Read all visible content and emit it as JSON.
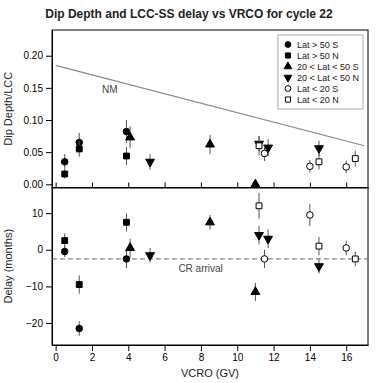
{
  "chart_data": [
    {
      "type": "scatter",
      "title": "Dip Depth and LCC-SS delay vs VRCO for cycle 22",
      "y_label": "Dip Depth/LCC",
      "xlim": [
        -0.2,
        17.2
      ],
      "xticks": [
        0,
        2,
        4,
        6,
        8,
        10,
        12,
        14,
        16
      ],
      "ylim": [
        -0.005,
        0.24
      ],
      "yticks": [
        {
          "value": 0.0,
          "label": "0.00"
        },
        0.05,
        {
          "value": 0.1,
          "label": "0.10"
        },
        0.15,
        {
          "value": 0.2,
          "label": "0.20"
        }
      ],
      "tick_labels": "y",
      "grid": false,
      "legend": "upper right",
      "series": [
        {
          "name": "Lat > 50 S",
          "marker": "circle",
          "color": "black",
          "x": [
            0.5,
            1.3,
            3.9
          ],
          "values": [
            0.035,
            0.065,
            0.082
          ],
          "errors": [
            0.012,
            0.015,
            0.018
          ]
        },
        {
          "name": "Lat > 50 N",
          "marker": "square",
          "color": "black",
          "x": [
            0.5,
            1.3,
            3.9
          ],
          "values": [
            0.016,
            0.055,
            0.044
          ],
          "errors": [
            0.007,
            0.012,
            0.014
          ]
        },
        {
          "name": "20 < Lat < 50 S",
          "marker": "triangle-up",
          "color": "black",
          "x": [
            4.1,
            8.5,
            11.0
          ],
          "values": [
            0.073,
            0.062,
            0.0
          ],
          "errors": [
            0.017,
            0.015,
            0.0
          ]
        },
        {
          "name": "20 < Lat < 50 N",
          "marker": "triangle-down",
          "color": "black",
          "x": [
            5.2,
            11.2,
            11.7,
            14.5
          ],
          "values": [
            0.035,
            0.063,
            0.057,
            0.056
          ],
          "errors": [
            0.012,
            0.012,
            0.013,
            0.012
          ]
        },
        {
          "name": "Lat < 20 S",
          "marker": "circle-open",
          "color": "black",
          "x": [
            11.5,
            14.0,
            16.0
          ],
          "values": [
            0.048,
            0.028,
            0.027
          ],
          "errors": [
            0.012,
            0.01,
            0.01
          ]
        },
        {
          "name": "Lat < 20 N",
          "marker": "square-open",
          "color": "black",
          "x": [
            11.2,
            14.5,
            16.5
          ],
          "values": [
            0.06,
            0.035,
            0.04
          ],
          "errors": [
            0.015,
            0.012,
            0.012
          ]
        }
      ],
      "lines": [
        {
          "x": [
            0,
            17
          ],
          "y": [
            0.185,
            0.06
          ],
          "label": "NM"
        }
      ]
    },
    {
      "type": "scatter",
      "x_label": "VCRO (GV)",
      "y_label": "Delay (months)",
      "xlim": [
        -0.2,
        17.2
      ],
      "xticks": [
        0,
        2,
        4,
        6,
        8,
        10,
        12,
        14,
        16
      ],
      "ylim": [
        -26,
        17
      ],
      "yticks": [
        {
          "value": -20,
          "label": "−20"
        },
        {
          "value": -10,
          "label": "−10"
        },
        0,
        10
      ],
      "grid": false,
      "series": [
        {
          "marker": "circle",
          "color": "black",
          "x": [
            0.5,
            1.3,
            3.9
          ],
          "values": [
            -0.5,
            -21.5,
            -2.5
          ],
          "errors": [
            1.5,
            2.0,
            2.5
          ]
        },
        {
          "marker": "square",
          "color": "black",
          "x": [
            0.5,
            1.3,
            3.9
          ],
          "values": [
            2.5,
            -9.5,
            7.5
          ],
          "errors": [
            2.0,
            2.5,
            2.5
          ]
        },
        {
          "marker": "triangle-up",
          "color": "black",
          "x": [
            4.1,
            8.5,
            11.0
          ],
          "values": [
            0.5,
            7.5,
            -11.5
          ],
          "errors": [
            2.5,
            2.0,
            2.5
          ]
        },
        {
          "marker": "triangle-down",
          "color": "black",
          "x": [
            5.2,
            11.2,
            11.7,
            14.5
          ],
          "values": [
            -1.5,
            4.0,
            3.0,
            -4.5
          ],
          "errors": [
            2.0,
            2.5,
            2.5,
            2.0
          ]
        },
        {
          "marker": "circle-open",
          "color": "black",
          "x": [
            11.5,
            14.0,
            16.0
          ],
          "values": [
            -2.5,
            9.5,
            0.5
          ],
          "errors": [
            2.5,
            3.0,
            2.0
          ]
        },
        {
          "marker": "square-open",
          "color": "black",
          "x": [
            11.2,
            14.5,
            16.5
          ],
          "values": [
            12.0,
            1.0,
            -2.5
          ],
          "errors": [
            3.5,
            2.5,
            2.0
          ]
        }
      ],
      "reference_lines": [
        {
          "y": -2.5,
          "label": "CR arrival",
          "line_style": "dashed"
        }
      ]
    }
  ]
}
